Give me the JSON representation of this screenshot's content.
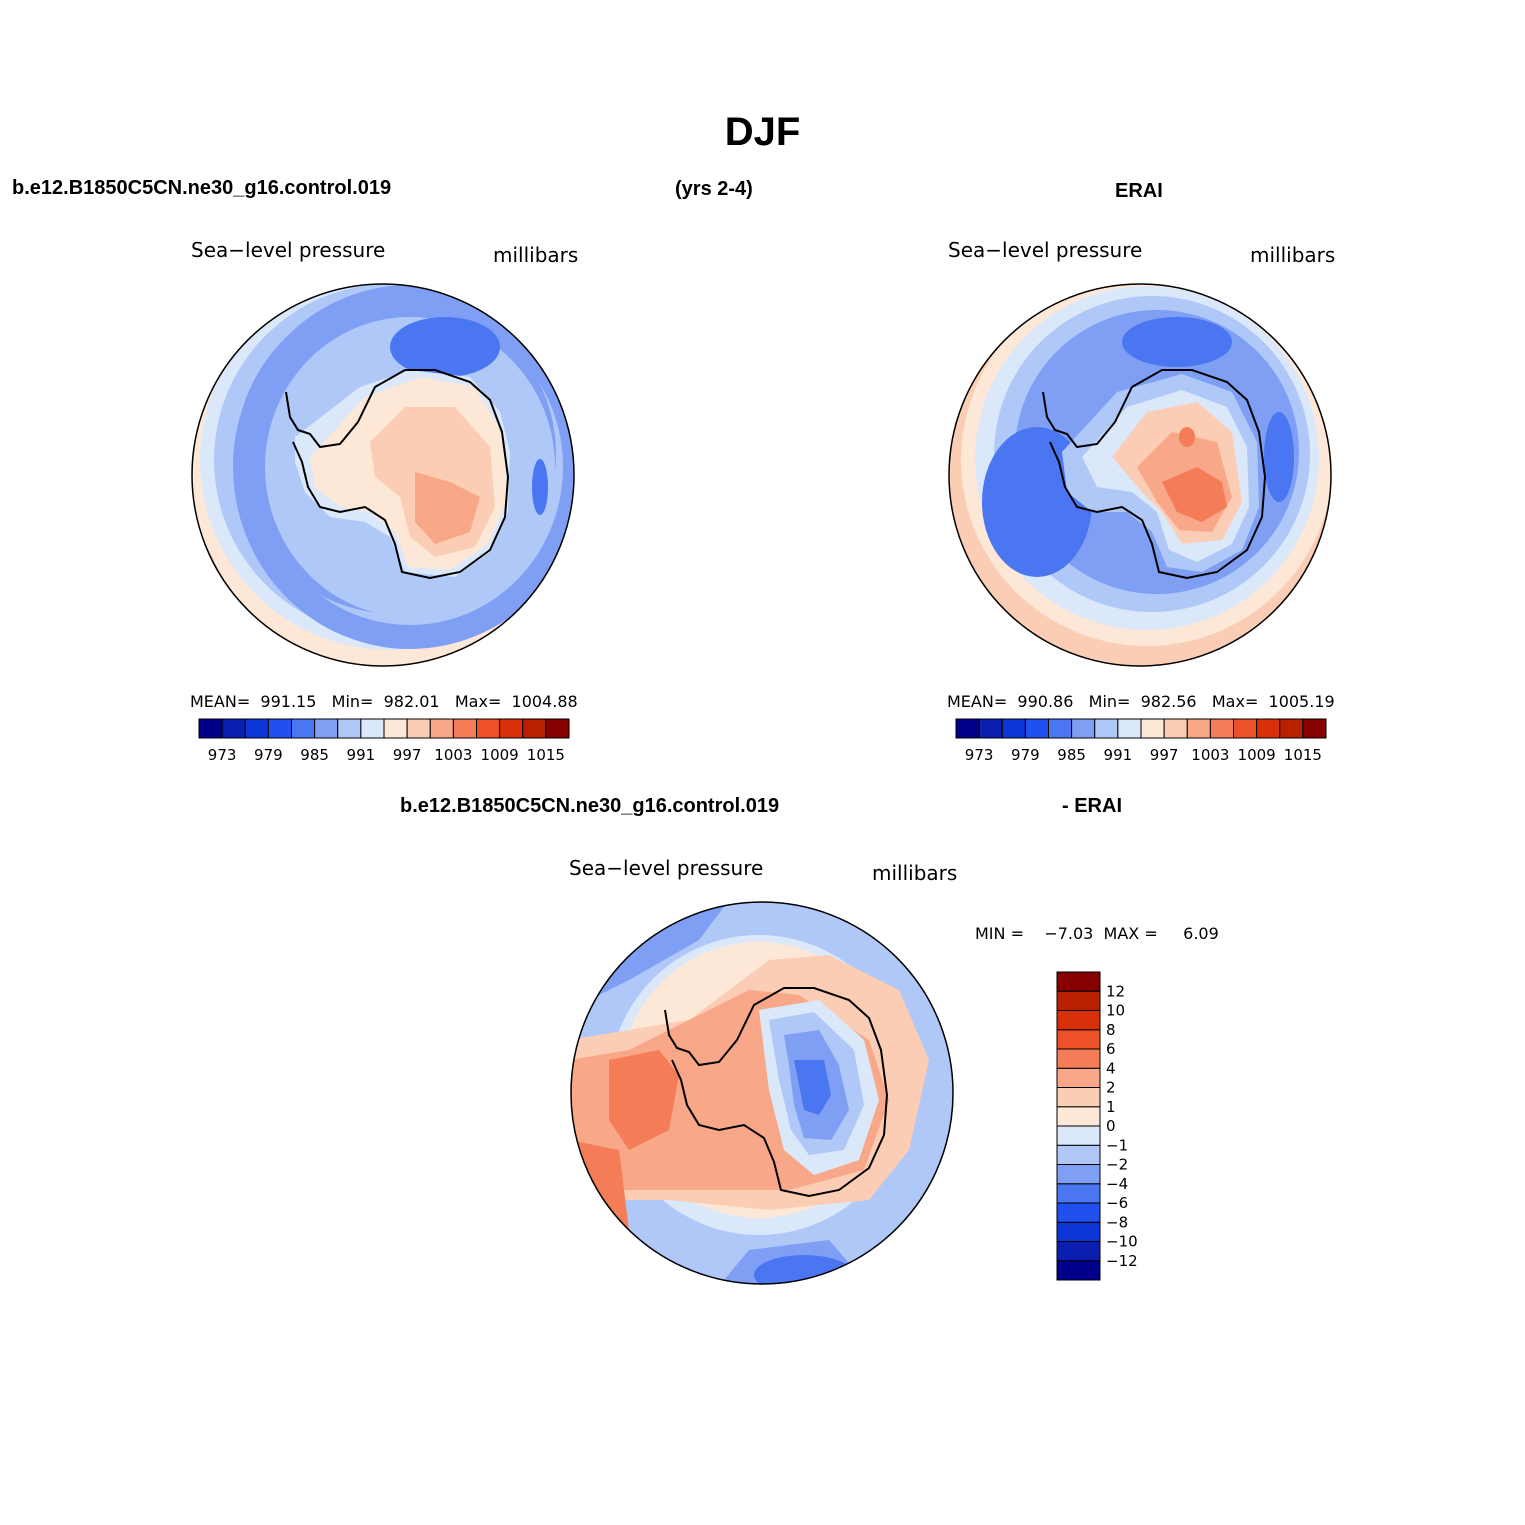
{
  "page": {
    "title": "DJF",
    "case_name": "b.e12.B1850C5CN.ne30_g16.control.019",
    "years": "(yrs 2-4)",
    "obs_name": "ERAI",
    "diff_case_name": "b.e12.B1850C5CN.ne30_g16.control.019",
    "diff_obs_name": "- ERAI"
  },
  "panels": {
    "model": {
      "variable": "Sea−level pressure",
      "units": "millibars",
      "stats": "MEAN=  991.15   Min=  982.01   Max=  1004.88"
    },
    "obs": {
      "variable": "Sea−level pressure",
      "units": "millibars",
      "stats": "MEAN=  990.86   Min=  982.56   Max=  1005.19"
    },
    "diff": {
      "variable": "Sea−level pressure",
      "units": "millibars",
      "stats": "MIN =    −7.03  MAX =     6.09"
    }
  },
  "colorbars": {
    "abs": {
      "colors": [
        "#00008b",
        "#0a1fb0",
        "#0d36d8",
        "#2050f0",
        "#4a76f2",
        "#7e9ff4",
        "#b0c8f8",
        "#dae8fa",
        "#fde8d8",
        "#fbcdb4",
        "#f8a888",
        "#f47c57",
        "#ee5028",
        "#d83008",
        "#b82000",
        "#860000"
      ],
      "labels": [
        "973",
        "979",
        "985",
        "991",
        "997",
        "1003",
        "1009",
        "1015"
      ]
    },
    "diff": {
      "colors": [
        "#00008b",
        "#0a1fb0",
        "#0d36d8",
        "#2050f0",
        "#4a76f2",
        "#7e9ff4",
        "#b0c8f8",
        "#dae8fa",
        "#fde8d8",
        "#fbcdb4",
        "#f8a888",
        "#f47c57",
        "#ee5028",
        "#d83008",
        "#b82000",
        "#860000"
      ],
      "labels": [
        "−12",
        "−10",
        "−8",
        "−6",
        "−4",
        "−2",
        "−1",
        "0",
        "1",
        "2",
        "4",
        "6",
        "8",
        "10",
        "12"
      ]
    }
  }
}
